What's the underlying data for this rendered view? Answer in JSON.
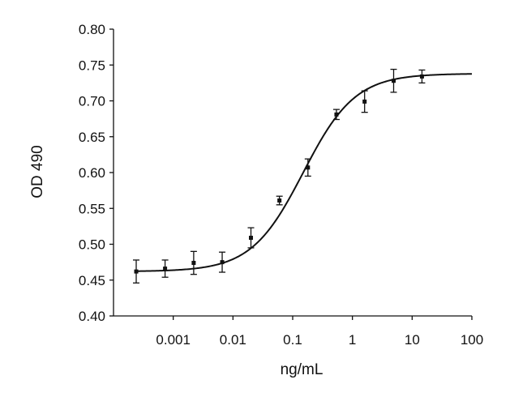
{
  "chart_data": {
    "type": "scatter",
    "title": "",
    "xlabel": "ng/mL",
    "ylabel": "OD 490",
    "x_scale": "log",
    "xlim": [
      0.0001,
      100
    ],
    "ylim": [
      0.4,
      0.8
    ],
    "x_ticks": [
      0.001,
      0.01,
      0.1,
      1,
      10,
      100
    ],
    "x_tick_labels": [
      "0.001",
      "0.01",
      "0.1",
      "1",
      "10",
      "100"
    ],
    "y_ticks": [
      0.4,
      0.45,
      0.5,
      0.55,
      0.6,
      0.65,
      0.7,
      0.75,
      0.8
    ],
    "y_tick_labels": [
      "0.40",
      "0.45",
      "0.50",
      "0.55",
      "0.60",
      "0.65",
      "0.70",
      "0.75",
      "0.80"
    ],
    "grid": false,
    "legend": "none",
    "series": [
      {
        "x": [
          0.00024,
          0.00073,
          0.0022,
          0.0066,
          0.02,
          0.06,
          0.18,
          0.54,
          1.6,
          4.9,
          14.6
        ],
        "y": [
          0.462,
          0.466,
          0.474,
          0.475,
          0.509,
          0.561,
          0.607,
          0.681,
          0.699,
          0.728,
          0.734
        ],
        "error": [
          0.016,
          0.012,
          0.016,
          0.014,
          0.014,
          0.006,
          0.012,
          0.007,
          0.015,
          0.016,
          0.009
        ],
        "color": "#111111"
      }
    ],
    "fit_curve": {
      "model": "4PL",
      "bottom": 0.462,
      "top": 0.738,
      "ec50": 0.15,
      "hill": 1.0,
      "color": "#111111"
    }
  }
}
